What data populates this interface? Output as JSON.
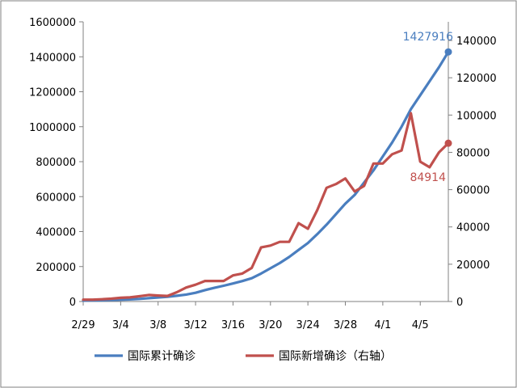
{
  "chart_data": {
    "type": "line",
    "title": "",
    "xlabel": "",
    "ylabel": "",
    "x_ticks": [
      "2/29",
      "3/4",
      "3/8",
      "3/12",
      "3/16",
      "3/20",
      "3/24",
      "3/28",
      "4/1",
      "4/5"
    ],
    "left_axis": {
      "ylim": [
        0,
        1600000
      ],
      "ticks": [
        "0",
        "200000",
        "400000",
        "600000",
        "800000",
        "1000000",
        "1200000",
        "1400000",
        "1600000"
      ]
    },
    "right_axis": {
      "ylim": [
        0,
        150000
      ],
      "ticks": [
        "0",
        "20000",
        "40000",
        "60000",
        "80000",
        "100000",
        "120000",
        "140000"
      ]
    },
    "grid": false,
    "legend_position": "bottom",
    "x": [
      "2/29",
      "3/1",
      "3/2",
      "3/3",
      "3/4",
      "3/5",
      "3/6",
      "3/7",
      "3/8",
      "3/9",
      "3/10",
      "3/11",
      "3/12",
      "3/13",
      "3/14",
      "3/15",
      "3/16",
      "3/17",
      "3/18",
      "3/19",
      "3/20",
      "3/21",
      "3/22",
      "3/23",
      "3/24",
      "3/25",
      "3/26",
      "3/27",
      "3/28",
      "3/29",
      "3/30",
      "3/31",
      "4/1",
      "4/2",
      "4/3",
      "4/4",
      "4/5",
      "4/6",
      "4/7",
      "4/8"
    ],
    "series": [
      {
        "name": "国际累计确诊",
        "axis": "left",
        "color": "#4a7ebf",
        "values": [
          5000,
          6000,
          7000,
          8500,
          10000,
          12000,
          15000,
          19000,
          23000,
          27000,
          33000,
          40000,
          50000,
          65000,
          78000,
          90000,
          103000,
          117000,
          133000,
          160000,
          190000,
          220000,
          255000,
          295000,
          335000,
          385000,
          440000,
          500000,
          560000,
          610000,
          680000,
          750000,
          830000,
          910000,
          1000000,
          1100000,
          1180000,
          1260000,
          1340000,
          1427916
        ],
        "end_label": "1427916"
      },
      {
        "name": "国际新增确诊（右轴）",
        "axis": "right",
        "color": "#c0504d",
        "values": [
          1000,
          1000,
          1200,
          1500,
          2000,
          2200,
          2800,
          3500,
          3200,
          3000,
          5000,
          7500,
          9000,
          11000,
          11000,
          11000,
          14000,
          15000,
          18000,
          29000,
          30000,
          32000,
          32000,
          42000,
          39000,
          49000,
          61000,
          63000,
          66000,
          59000,
          62000,
          74000,
          74000,
          79000,
          81000,
          101000,
          75000,
          72000,
          80000,
          84914
        ],
        "end_label": "84914"
      }
    ],
    "legend": [
      {
        "label": "国际累计确诊",
        "color": "#4a7ebf"
      },
      {
        "label": "国际新增确诊（右轴）",
        "color": "#c0504d"
      }
    ]
  }
}
